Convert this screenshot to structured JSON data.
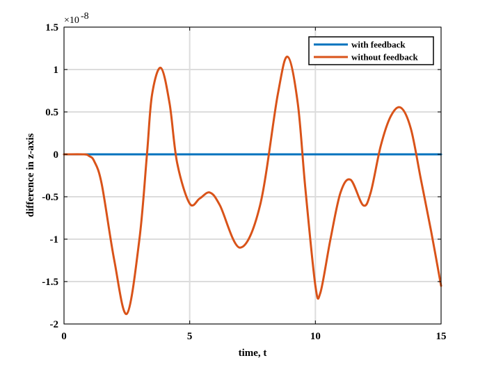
{
  "chart_data": {
    "type": "line",
    "title": "",
    "xlabel": "time, t",
    "ylabel": "difference in z-axis",
    "y_exponent": "×10",
    "y_exponent_power": "-8",
    "xlim": [
      0,
      15
    ],
    "ylim": [
      -2,
      1.5
    ],
    "x_ticks": [
      0,
      5,
      10,
      15
    ],
    "y_ticks": [
      -2,
      -1.5,
      -1,
      -0.5,
      0,
      0.5,
      1,
      1.5
    ],
    "x_tick_labels": [
      "0",
      "5",
      "10",
      "15"
    ],
    "y_tick_labels": [
      "-2",
      "-1.5",
      "-1",
      "-0.5",
      "0",
      "0.5",
      "1",
      "1.5"
    ],
    "grid": true,
    "legend_position": "top-right",
    "series": [
      {
        "name": "with feedback",
        "color": "#0072BD",
        "x": [
          0,
          15
        ],
        "y": [
          0,
          0
        ]
      },
      {
        "name": "without feedback",
        "color": "#D95319",
        "x": [
          0,
          0.8,
          1.0,
          1.2,
          1.5,
          2.0,
          2.5,
          3.0,
          3.3,
          3.5,
          3.85,
          4.2,
          4.5,
          5.0,
          5.4,
          5.8,
          6.2,
          7.0,
          7.8,
          8.5,
          8.9,
          9.3,
          9.6,
          10.0,
          10.2,
          10.6,
          11.0,
          11.4,
          11.9,
          12.2,
          12.6,
          13.0,
          13.4,
          13.8,
          14.2,
          14.6,
          15.0
        ],
        "y": [
          0,
          0,
          -0.02,
          -0.08,
          -0.35,
          -1.25,
          -1.88,
          -1.0,
          0.0,
          0.7,
          1.02,
          0.6,
          -0.1,
          -0.58,
          -0.52,
          -0.45,
          -0.6,
          -1.1,
          -0.6,
          0.7,
          1.15,
          0.6,
          -0.4,
          -1.55,
          -1.63,
          -1.0,
          -0.45,
          -0.3,
          -0.6,
          -0.45,
          0.1,
          0.45,
          0.55,
          0.3,
          -0.3,
          -0.9,
          -1.55
        ]
      }
    ]
  }
}
